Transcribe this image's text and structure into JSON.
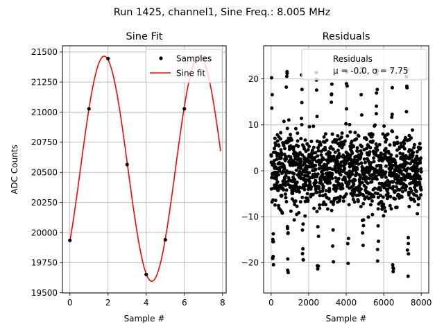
{
  "suptitle": "Run 1425, channel1, Sine Freq.: 8.005 MHz",
  "chart_data": [
    {
      "type": "line",
      "title": "Sine Fit",
      "xlabel": "Sample #",
      "ylabel": "ADC Counts",
      "xlim": [
        -0.39,
        8.19
      ],
      "ylim": [
        19498,
        21551
      ],
      "xticks": [
        0,
        2,
        4,
        6,
        8
      ],
      "yticks": [
        19500,
        19750,
        20000,
        20250,
        20500,
        20750,
        21000,
        21250,
        21500
      ],
      "grid": true,
      "legend": {
        "placement": "top-right",
        "entries": [
          "Samples",
          "Sine fit"
        ]
      },
      "series": [
        {
          "name": "Samples",
          "kind": "scatter",
          "color": "#000000",
          "x": [
            0,
            1,
            2,
            3,
            4,
            5,
            6,
            7
          ],
          "y": [
            19935,
            21028,
            21445,
            20565,
            19652,
            19940,
            21028,
            21445
          ]
        },
        {
          "name": "Sine fit",
          "kind": "line",
          "color": "#ff0000",
          "model": {
            "offset": 20530,
            "amplitude": 935,
            "period": 4.98,
            "peak_at": 1.8,
            "x_start": 0,
            "x_end": 7.9
          }
        }
      ]
    },
    {
      "type": "scatter",
      "title": "Residuals",
      "xlabel": "Sample #",
      "ylabel": "",
      "xlim": [
        -400,
        8400
      ],
      "ylim": [
        -26.6,
        27.2
      ],
      "xticks": [
        0,
        2000,
        4000,
        6000,
        8000
      ],
      "yticks": [
        -20,
        -10,
        0,
        10,
        20
      ],
      "grid": true,
      "legend": {
        "placement": "top-right",
        "entries": [
          "Residuals",
          "μ = -0.0, σ = 7.75"
        ]
      },
      "series": [
        {
          "name": "Residuals",
          "color": "#000000",
          "count": 8000,
          "mean": -0.0,
          "std": 7.75,
          "range": [
            -24.5,
            24.5
          ]
        }
      ]
    }
  ]
}
